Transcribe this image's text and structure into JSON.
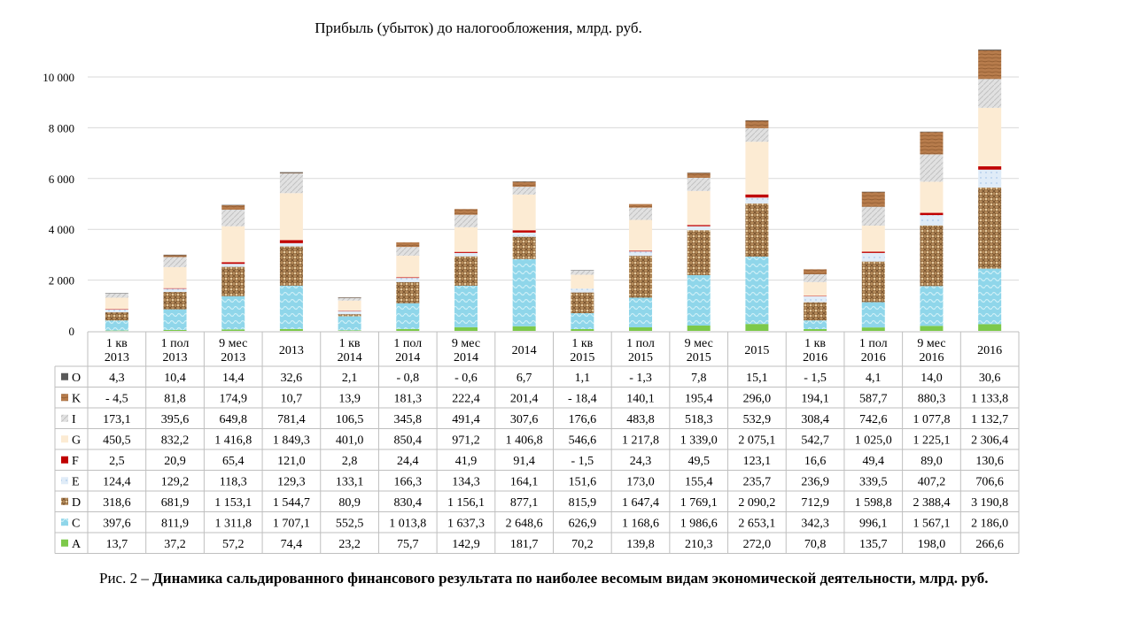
{
  "chart_data": {
    "type": "bar",
    "stacked": true,
    "title": "Прибыль (убыток) до налогообложения, млрд. руб.",
    "ylim": [
      0,
      11000
    ],
    "yticks": [
      "0",
      "2 000",
      "4 000",
      "6 000",
      "8 000",
      "10 000"
    ],
    "ytick_values": [
      0,
      2000,
      4000,
      6000,
      8000,
      10000
    ],
    "grid": true,
    "legend": "data-table",
    "categories": [
      [
        "1 кв",
        "2013"
      ],
      [
        "1 пол",
        "2013"
      ],
      [
        "9 мес",
        "2013"
      ],
      [
        "2013",
        ""
      ],
      [
        "1 кв",
        "2014"
      ],
      [
        "1 пол",
        "2014"
      ],
      [
        "9 мес",
        "2014"
      ],
      [
        "2014",
        ""
      ],
      [
        "1 кв",
        "2015"
      ],
      [
        "1 пол",
        "2015"
      ],
      [
        "9 мес",
        "2015"
      ],
      [
        "2015",
        ""
      ],
      [
        "1 кв",
        "2016"
      ],
      [
        "1 пол",
        "2016"
      ],
      [
        "9 мес",
        "2016"
      ],
      [
        "2016",
        ""
      ]
    ],
    "series": [
      {
        "name": "O",
        "color": "#5a5a5a",
        "values": [
          4.3,
          10.4,
          14.4,
          32.6,
          2.1,
          -0.8,
          -0.6,
          6.7,
          1.1,
          -1.3,
          7.8,
          15.1,
          -1.5,
          4.1,
          14.0,
          30.6
        ],
        "labels": [
          "4,3",
          "10,4",
          "14,4",
          "32,6",
          "2,1",
          "- 0,8",
          "- 0,6",
          "6,7",
          "1,1",
          "- 1,3",
          "7,8",
          "15,1",
          "- 1,5",
          "4,1",
          "14,0",
          "30,6"
        ]
      },
      {
        "name": "K",
        "color": "#b5794a",
        "values": [
          -4.5,
          81.8,
          174.9,
          10.7,
          13.9,
          181.3,
          222.4,
          201.4,
          -18.4,
          140.1,
          195.4,
          296.0,
          194.1,
          587.7,
          880.3,
          1133.8
        ],
        "labels": [
          "- 4,5",
          "81,8",
          "174,9",
          "10,7",
          "13,9",
          "181,3",
          "222,4",
          "201,4",
          "- 18,4",
          "140,1",
          "195,4",
          "296,0",
          "194,1",
          "587,7",
          "880,3",
          "1 133,8"
        ]
      },
      {
        "name": "I",
        "color": "#d9d9d9",
        "values": [
          173.1,
          395.6,
          649.8,
          781.4,
          106.5,
          345.8,
          491.4,
          307.6,
          176.6,
          483.8,
          518.3,
          532.9,
          308.4,
          742.6,
          1077.8,
          1132.7
        ],
        "labels": [
          "173,1",
          "395,6",
          "649,8",
          "781,4",
          "106,5",
          "345,8",
          "491,4",
          "307,6",
          "176,6",
          "483,8",
          "518,3",
          "532,9",
          "308,4",
          "742,6",
          "1 077,8",
          "1 132,7"
        ]
      },
      {
        "name": "G",
        "color": "#fcebd3",
        "values": [
          450.5,
          832.2,
          1416.8,
          1849.3,
          401.0,
          850.4,
          971.2,
          1406.8,
          546.6,
          1217.8,
          1339.0,
          2075.1,
          542.7,
          1025.0,
          1225.1,
          2306.4
        ],
        "labels": [
          "450,5",
          "832,2",
          "1 416,8",
          "1 849,3",
          "401,0",
          "850,4",
          "971,2",
          "1 406,8",
          "546,6",
          "1 217,8",
          "1 339,0",
          "2 075,1",
          "542,7",
          "1 025,0",
          "1 225,1",
          "2 306,4"
        ]
      },
      {
        "name": "F",
        "color": "#c00000",
        "values": [
          2.5,
          20.9,
          65.4,
          121.0,
          2.8,
          24.4,
          41.9,
          91.4,
          -1.5,
          24.3,
          49.5,
          123.1,
          16.6,
          49.4,
          89.0,
          130.6
        ],
        "labels": [
          "2,5",
          "20,9",
          "65,4",
          "121,0",
          "2,8",
          "24,4",
          "41,9",
          "91,4",
          "- 1,5",
          "24,3",
          "49,5",
          "123,1",
          "16,6",
          "49,4",
          "89,0",
          "130,6"
        ]
      },
      {
        "name": "E",
        "color": "#d6e6f7",
        "values": [
          124.4,
          129.2,
          118.3,
          129.3,
          133.1,
          166.3,
          134.3,
          164.1,
          151.6,
          173.0,
          155.4,
          235.7,
          236.9,
          339.5,
          407.2,
          706.6
        ],
        "labels": [
          "124,4",
          "129,2",
          "118,3",
          "129,3",
          "133,1",
          "166,3",
          "134,3",
          "164,1",
          "151,6",
          "173,0",
          "155,4",
          "235,7",
          "236,9",
          "339,5",
          "407,2",
          "706,6"
        ]
      },
      {
        "name": "D",
        "color": "#a67c4e",
        "values": [
          318.6,
          681.9,
          1153.1,
          1544.7,
          80.9,
          830.4,
          1156.1,
          877.1,
          815.9,
          1647.4,
          1769.1,
          2090.2,
          712.9,
          1598.8,
          2388.4,
          3190.8
        ],
        "labels": [
          "318,6",
          "681,9",
          "1 153,1",
          "1 544,7",
          "80,9",
          "830,4",
          "1 156,1",
          "877,1",
          "815,9",
          "1 647,4",
          "1 769,1",
          "2 090,2",
          "712,9",
          "1 598,8",
          "2 388,4",
          "3 190,8"
        ]
      },
      {
        "name": "C",
        "color": "#8fd3e6",
        "values": [
          397.6,
          811.9,
          1311.8,
          1707.1,
          552.5,
          1013.8,
          1637.3,
          2648.6,
          626.9,
          1168.6,
          1986.6,
          2653.1,
          342.3,
          996.1,
          1567.1,
          2186.0
        ],
        "labels": [
          "397,6",
          "811,9",
          "1 311,8",
          "1 707,1",
          "552,5",
          "1 013,8",
          "1 637,3",
          "2 648,6",
          "626,9",
          "1 168,6",
          "1 986,6",
          "2 653,1",
          "342,3",
          "996,1",
          "1 567,1",
          "2 186,0"
        ]
      },
      {
        "name": "A",
        "color": "#7dc94a",
        "values": [
          13.7,
          37.2,
          57.2,
          74.4,
          23.2,
          75.7,
          142.9,
          181.7,
          70.2,
          139.8,
          210.3,
          272.0,
          70.8,
          135.7,
          198.0,
          266.6
        ],
        "labels": [
          "13,7",
          "37,2",
          "57,2",
          "74,4",
          "23,2",
          "75,7",
          "142,9",
          "181,7",
          "70,2",
          "139,8",
          "210,3",
          "272,0",
          "70,8",
          "135,7",
          "198,0",
          "266,6"
        ]
      }
    ],
    "stack_order_bottom_to_top": [
      "A",
      "C",
      "D",
      "E",
      "F",
      "G",
      "I",
      "K",
      "O"
    ]
  },
  "caption": {
    "prefix": "Рис. 2 – ",
    "bold_text": "Динамика сальдированного финансового результата  по наиболее весомым видам экономической деятельности, млрд. руб."
  }
}
